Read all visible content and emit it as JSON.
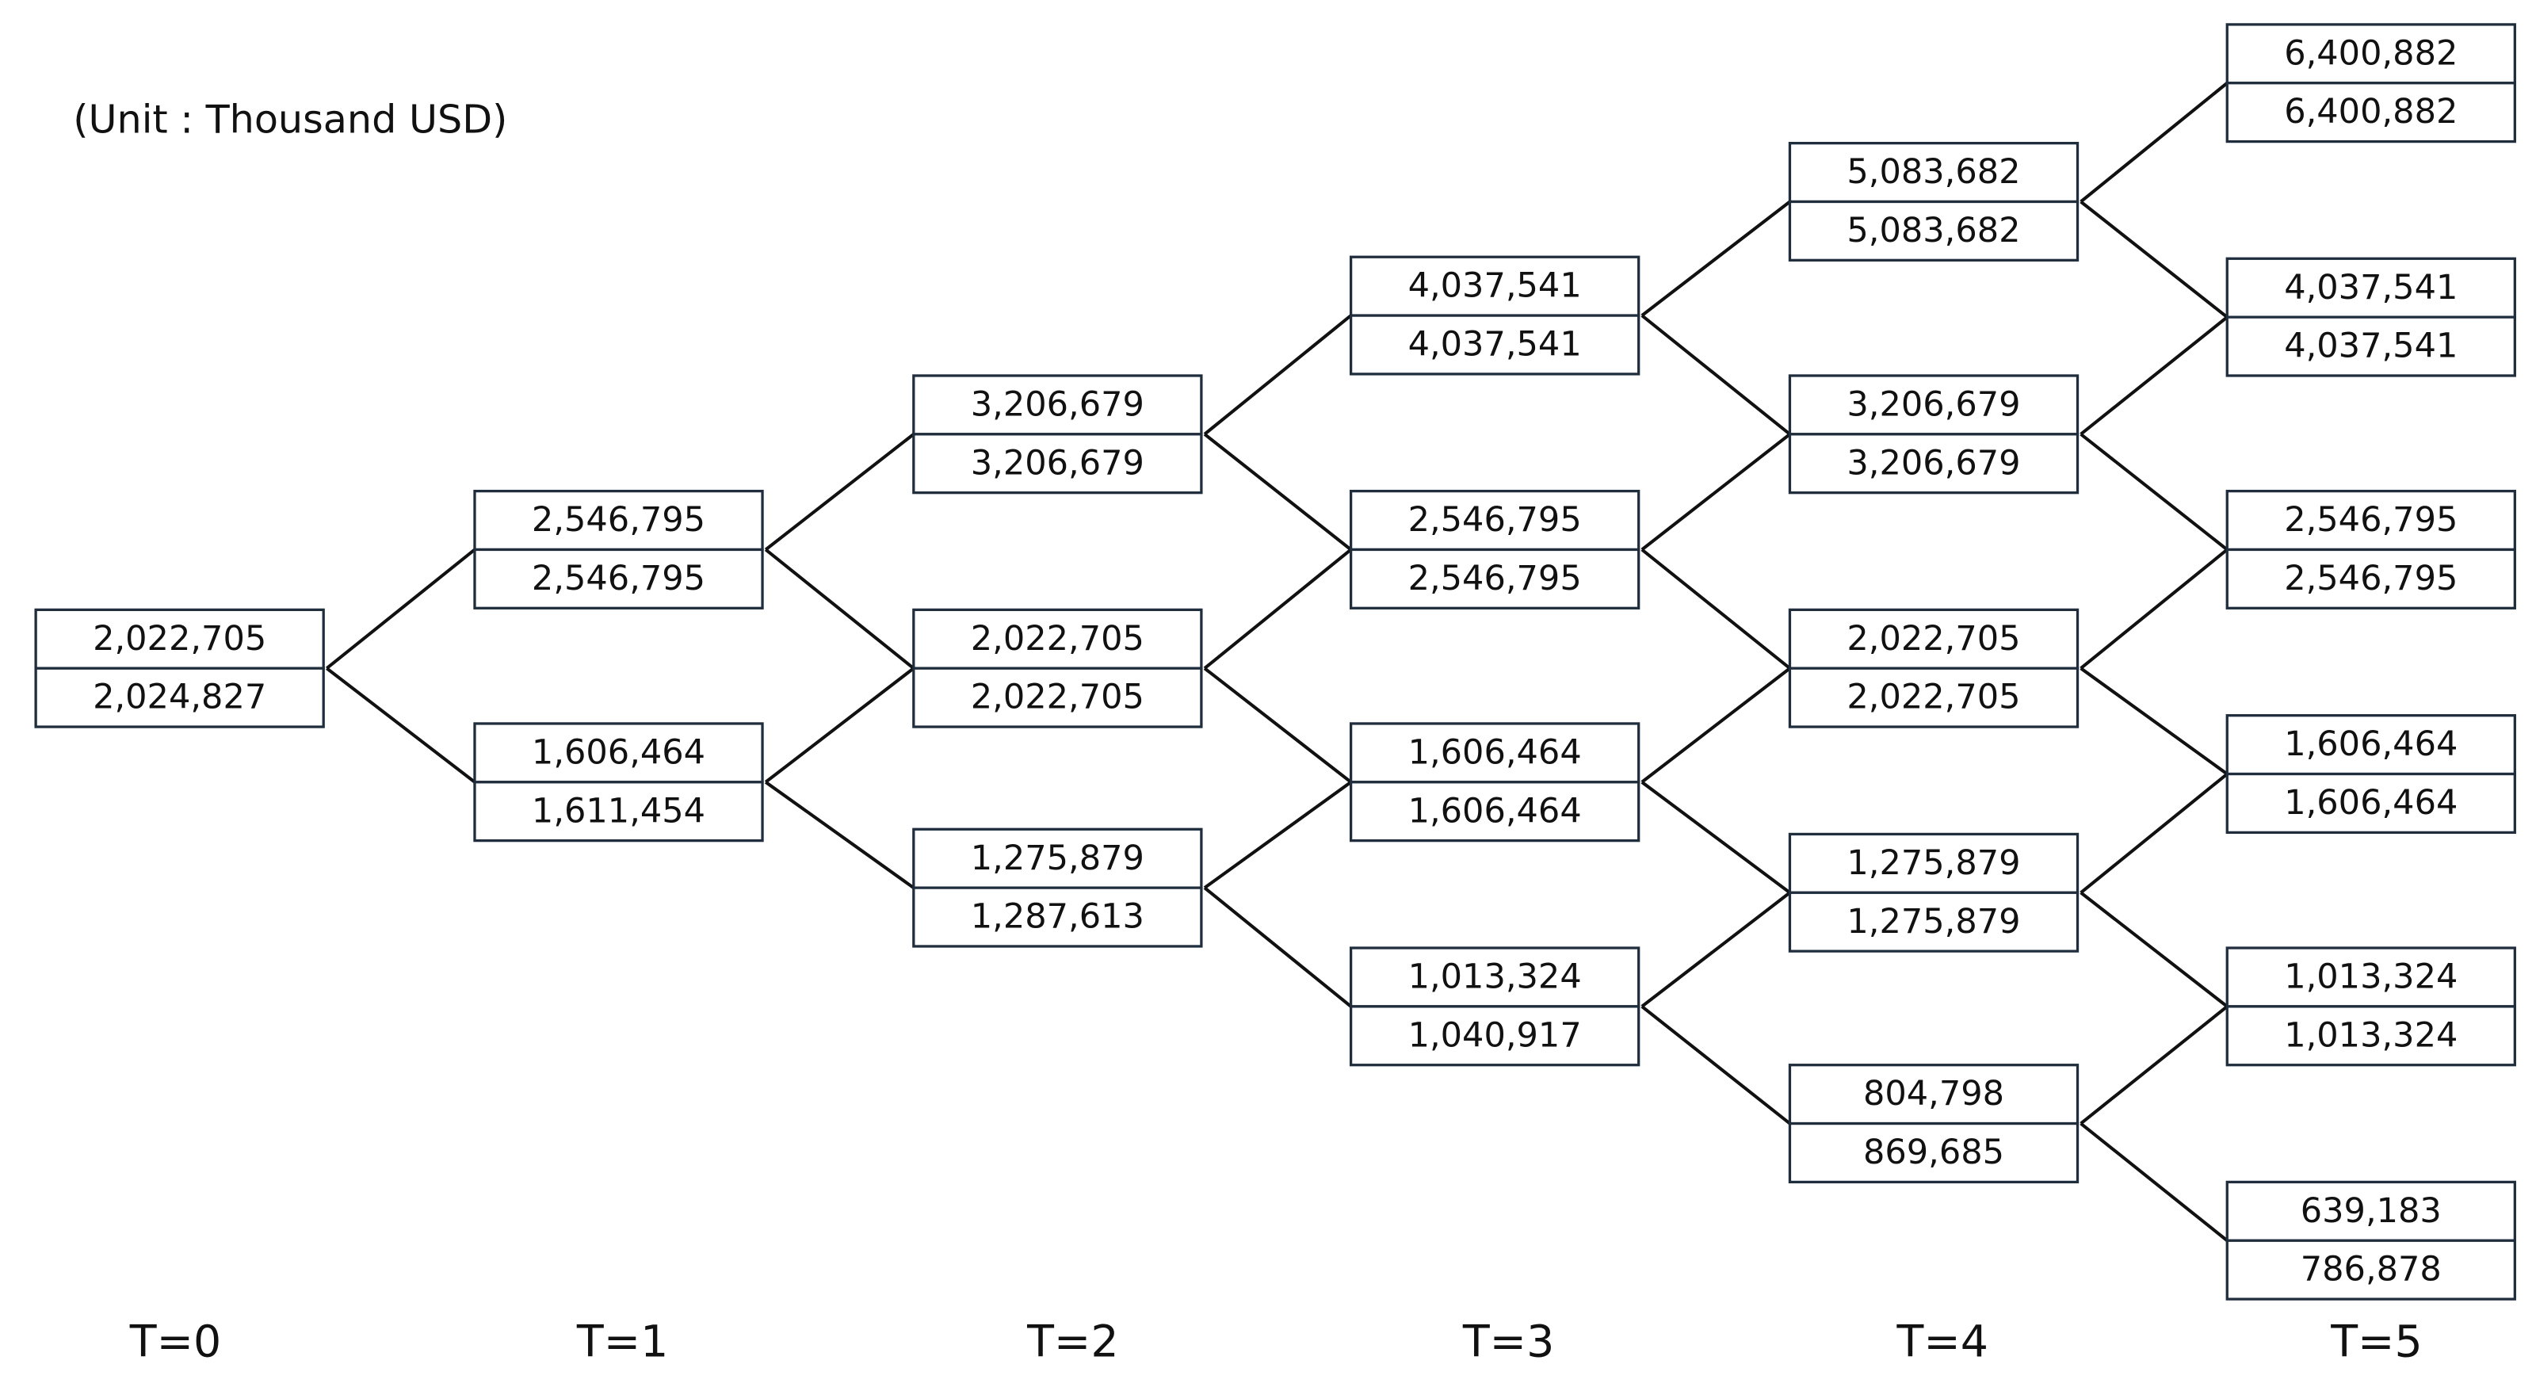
{
  "unit": "(Unit : Thousand USD)",
  "columns": [
    {
      "label": "T=0",
      "nodes": [
        [
          "2,022,705",
          "2,024,827"
        ]
      ]
    },
    {
      "label": "T=1",
      "nodes": [
        [
          "2,546,795",
          "2,546,795"
        ],
        [
          "1,606,464",
          "1,611,454"
        ]
      ]
    },
    {
      "label": "T=2",
      "nodes": [
        [
          "3,206,679",
          "3,206,679"
        ],
        [
          "2,022,705",
          "2,022,705"
        ],
        [
          "1,275,879",
          "1,287,613"
        ]
      ]
    },
    {
      "label": "T=3",
      "nodes": [
        [
          "4,037,541",
          "4,037,541"
        ],
        [
          "2,546,795",
          "2,546,795"
        ],
        [
          "1,606,464",
          "1,606,464"
        ],
        [
          "1,013,324",
          "1,040,917"
        ]
      ]
    },
    {
      "label": "T=4",
      "nodes": [
        [
          "5,083,682",
          "5,083,682"
        ],
        [
          "3,206,679",
          "3,206,679"
        ],
        [
          "2,022,705",
          "2,022,705"
        ],
        [
          "1,275,879",
          "1,275,879"
        ],
        [
          "804,798",
          "869,685"
        ]
      ]
    },
    {
      "label": "T=5",
      "nodes": [
        [
          "6,400,882",
          "6,400,882"
        ],
        [
          "4,037,541",
          "4,037,541"
        ],
        [
          "2,546,795",
          "2,546,795"
        ],
        [
          "1,606,464",
          "1,606,464"
        ],
        [
          "1,013,324",
          "1,013,324"
        ],
        [
          "639,183",
          "786,878"
        ]
      ]
    }
  ]
}
